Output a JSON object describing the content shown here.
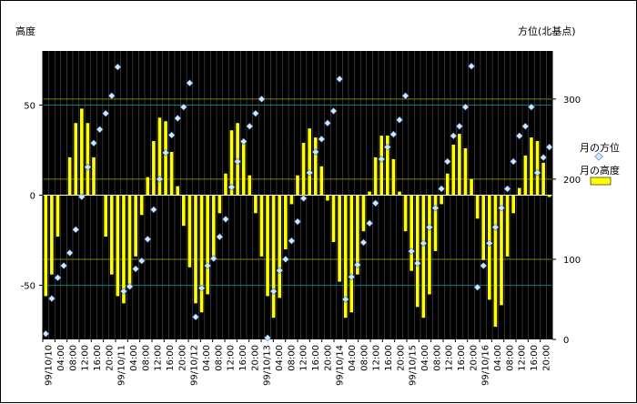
{
  "chart_data": {
    "type": "bar",
    "left_axis_title": "高度",
    "right_axis_title": "方位(北基点)",
    "left_ylim": [
      -80,
      80
    ],
    "left_ticks": [
      50,
      0,
      -50
    ],
    "right_ylim": [
      0,
      360
    ],
    "right_ticks": [
      300,
      200,
      100,
      0
    ],
    "grid": true,
    "legend_position": "right",
    "colors": {
      "plot_bg": "#000000",
      "bar": "#ffff00",
      "azimuth_marker": "#cfe6ff",
      "grid_vertical": "#555555",
      "grid_olive": "#808000",
      "grid_teal": "#008080"
    },
    "x_labels": [
      "99/10/10",
      "04:00",
      "08:00",
      "12:00",
      "16:00",
      "20:00",
      "99/10/11",
      "04:00",
      "08:00",
      "12:00",
      "16:00",
      "20:00",
      "99/10/12",
      "04:00",
      "08:00",
      "12:00",
      "16:00",
      "20:00",
      "99/10/13",
      "04:00",
      "08:00",
      "12:00",
      "16:00",
      "20:00",
      "99/10/14",
      "04:00",
      "08:00",
      "12:00",
      "16:00",
      "20:00",
      "99/10/15",
      "04:00",
      "08:00",
      "12:00",
      "16:00",
      "20:00",
      "99/10/16",
      "04:00",
      "08:00",
      "12:00",
      "16:00",
      "20:00"
    ],
    "series": [
      {
        "name": "月の高度",
        "kind": "bar",
        "values": [
          -56,
          -44,
          -23,
          0,
          21,
          40,
          48,
          40,
          21,
          0,
          -23,
          -44,
          -56,
          -60,
          -51,
          -34,
          -11,
          10,
          30,
          43,
          41,
          24,
          5,
          -17,
          -40,
          -60,
          -65,
          -55,
          -35,
          -10,
          12,
          36,
          40,
          30,
          11,
          -10,
          -34,
          -56,
          -68,
          -57,
          -30,
          -5,
          11,
          29,
          37,
          32,
          16,
          -3,
          -26,
          -48,
          -68,
          -65,
          -44,
          -20,
          2,
          21,
          33,
          33,
          20,
          2,
          -20,
          -42,
          -62,
          -68,
          -55,
          -31,
          -5,
          12,
          28,
          34,
          26,
          9,
          -13,
          -36,
          -58,
          -73,
          -61,
          -34,
          -10,
          4,
          22,
          32,
          30,
          18,
          -1
        ]
      },
      {
        "name": "月の方位",
        "kind": "scatter",
        "values": [
          7,
          51,
          77,
          92,
          108,
          137,
          178,
          215,
          245,
          262,
          282,
          304,
          340,
          60,
          66,
          88,
          98,
          125,
          162,
          200,
          233,
          255,
          276,
          290,
          320,
          28,
          64,
          92,
          101,
          128,
          150,
          190,
          222,
          247,
          266,
          282,
          300,
          2,
          60,
          86,
          100,
          123,
          147,
          176,
          208,
          234,
          250,
          270,
          285,
          325,
          50,
          78,
          93,
          121,
          145,
          170,
          225,
          240,
          256,
          274,
          304,
          110,
          95,
          120,
          140,
          164,
          188,
          222,
          254,
          266,
          290,
          341,
          65,
          92,
          120,
          140,
          164,
          188,
          222,
          254,
          266,
          290,
          208,
          227,
          240
        ]
      }
    ]
  }
}
